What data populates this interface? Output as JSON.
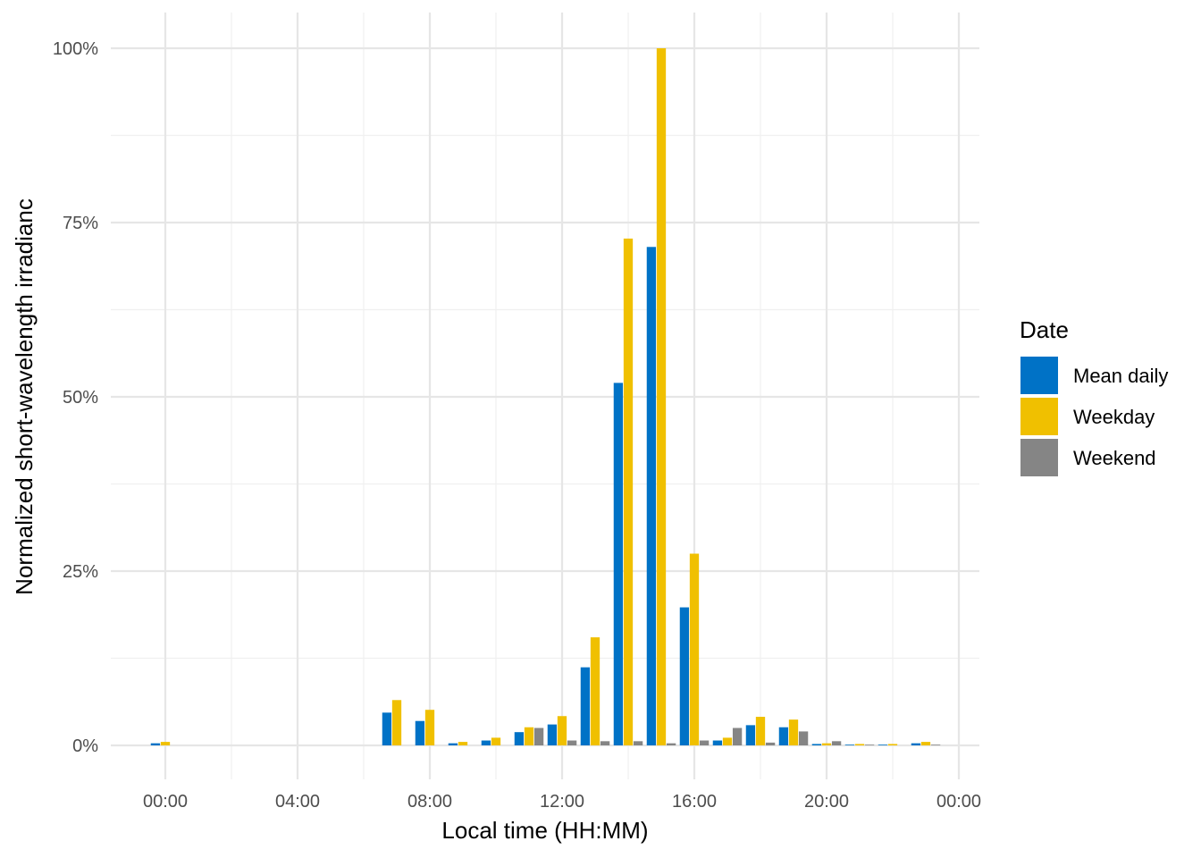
{
  "chart_data": {
    "type": "bar",
    "xlabel": "Local time (HH:MM)",
    "ylabel": "Normalized short-wavelength irradianc",
    "x_unit": "hours",
    "xlim": [
      0,
      24
    ],
    "ylim": [
      0,
      100
    ],
    "x_ticks": [
      {
        "value": 0,
        "label": "00:00"
      },
      {
        "value": 4,
        "label": "04:00"
      },
      {
        "value": 8,
        "label": "08:00"
      },
      {
        "value": 12,
        "label": "12:00"
      },
      {
        "value": 16,
        "label": "16:00"
      },
      {
        "value": 20,
        "label": "20:00"
      },
      {
        "value": 24,
        "label": "00:00"
      }
    ],
    "y_ticks": [
      {
        "value": 0,
        "label": "0%"
      },
      {
        "value": 25,
        "label": "25%"
      },
      {
        "value": 50,
        "label": "50%"
      },
      {
        "value": 75,
        "label": "75%"
      },
      {
        "value": 100,
        "label": "100%"
      }
    ],
    "grid": true,
    "legend": {
      "title": "Date",
      "position": "right"
    },
    "x": [
      0,
      7,
      8,
      9,
      10,
      11,
      12,
      13,
      14,
      15,
      16,
      17,
      18,
      19,
      20,
      21,
      22,
      23
    ],
    "series": [
      {
        "name": "Mean daily",
        "color": "#0072C6",
        "values": [
          0.3,
          4.7,
          3.5,
          0.3,
          0.7,
          1.9,
          3.0,
          11.2,
          52.0,
          71.5,
          19.8,
          0.7,
          2.9,
          2.6,
          0.2,
          0.1,
          0.1,
          0.3
        ]
      },
      {
        "name": "Weekday",
        "color": "#F0C000",
        "values": [
          0.5,
          6.5,
          5.1,
          0.5,
          1.1,
          2.6,
          4.2,
          15.5,
          72.7,
          100.0,
          27.5,
          1.1,
          4.1,
          3.7,
          0.3,
          0.2,
          0.2,
          0.5
        ]
      },
      {
        "name": "Weekend",
        "color": "#858585",
        "values": [
          0.0,
          0.0,
          0.0,
          0.0,
          0.0,
          2.5,
          0.7,
          0.6,
          0.6,
          0.3,
          0.7,
          2.5,
          0.4,
          2.0,
          0.6,
          0.1,
          0.0,
          0.1
        ]
      }
    ]
  }
}
